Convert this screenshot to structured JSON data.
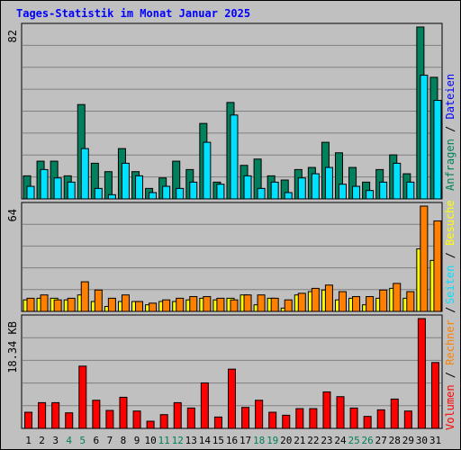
{
  "title": "Tages-Statistik im Monat Januar 2025",
  "colors": {
    "background": "#c0c0c0",
    "plot_background": "#c0c0c0",
    "grid": "#808080",
    "anfragen": "#00805c",
    "dateien": "#00e0ff",
    "seiten": "#00e0ff",
    "besuche": "#ffff00",
    "rechner": "#ff8000",
    "volumen": "#ff0000",
    "title": "#0000ff",
    "weekend": "#00805c",
    "weekday": "#000000"
  },
  "legends": {
    "top": [
      {
        "text": "Anfragen",
        "color": "#00805c"
      },
      {
        "text": " / ",
        "color": "#000000"
      },
      {
        "text": "Dateien",
        "color": "#0000ff"
      }
    ],
    "middle": [
      {
        "text": "Seiten",
        "color": "#00e0ff"
      },
      {
        "text": " / ",
        "color": "#000000"
      },
      {
        "text": "Besuche",
        "color": "#ffff00"
      }
    ],
    "bottom": [
      {
        "text": "Volumen",
        "color": "#ff0000"
      },
      {
        "text": " / ",
        "color": "#000000"
      },
      {
        "text": "Rechner",
        "color": "#ff8000"
      },
      {
        "text": " / ",
        "color": "#000000"
      }
    ]
  },
  "chart_data": [
    {
      "type": "bar",
      "panel": "top",
      "ymax_label": "82",
      "ylim": [
        0,
        82
      ],
      "categories": [
        "1",
        "2",
        "3",
        "4",
        "5",
        "6",
        "7",
        "8",
        "9",
        "10",
        "11",
        "12",
        "13",
        "14",
        "15",
        "16",
        "17",
        "18",
        "19",
        "20",
        "21",
        "22",
        "23",
        "24",
        "25",
        "26",
        "27",
        "28",
        "29",
        "30",
        "31"
      ],
      "weekend_days": [
        "4",
        "5",
        "11",
        "12",
        "18",
        "19",
        "25",
        "26"
      ],
      "series": [
        {
          "name": "Anfragen",
          "color": "#00805c",
          "values": [
            11,
            18,
            18,
            11,
            45,
            17,
            13,
            24,
            13,
            5,
            10,
            18,
            14,
            36,
            8,
            46,
            16,
            19,
            11,
            9,
            14,
            15,
            27,
            22,
            15,
            8,
            14,
            21,
            12,
            82,
            58
          ]
        },
        {
          "name": "Dateien",
          "color": "#00e0ff",
          "values": [
            6,
            14,
            10,
            8,
            24,
            5,
            2,
            17,
            11,
            3,
            6,
            5,
            8,
            27,
            7,
            40,
            11,
            5,
            8,
            3,
            10,
            12,
            15,
            7,
            6,
            4,
            8,
            17,
            8,
            59,
            47
          ]
        }
      ]
    },
    {
      "type": "bar",
      "panel": "middle",
      "ymax_label": "64",
      "ylim": [
        0,
        64
      ],
      "categories": [
        "1",
        "2",
        "3",
        "4",
        "5",
        "6",
        "7",
        "8",
        "9",
        "10",
        "11",
        "12",
        "13",
        "14",
        "15",
        "16",
        "17",
        "18",
        "19",
        "20",
        "21",
        "22",
        "23",
        "24",
        "25",
        "26",
        "27",
        "28",
        "29",
        "30",
        "31"
      ],
      "series": [
        {
          "name": "Besuche",
          "color": "#ffff00",
          "values": [
            7,
            8,
            8,
            7,
            10,
            6,
            3,
            6,
            6,
            4,
            6,
            6,
            7,
            8,
            7,
            8,
            10,
            4,
            8,
            2,
            10,
            12,
            13,
            7,
            8,
            4,
            8,
            14,
            8,
            38,
            31
          ]
        },
        {
          "name": "Rechner",
          "color": "#ff8000",
          "values": [
            8,
            10,
            7,
            8,
            18,
            13,
            8,
            10,
            6,
            5,
            7,
            8,
            9,
            9,
            8,
            7,
            10,
            10,
            8,
            7,
            11,
            14,
            16,
            12,
            9,
            9,
            13,
            17,
            12,
            64,
            55
          ]
        }
      ]
    },
    {
      "type": "bar",
      "panel": "bottom",
      "ymax_label": "18.34 KB",
      "ylim": [
        0,
        18.34
      ],
      "categories": [
        "1",
        "2",
        "3",
        "4",
        "5",
        "6",
        "7",
        "8",
        "9",
        "10",
        "11",
        "12",
        "13",
        "14",
        "15",
        "16",
        "17",
        "18",
        "19",
        "20",
        "21",
        "22",
        "23",
        "24",
        "25",
        "26",
        "27",
        "28",
        "29",
        "30",
        "31"
      ],
      "series": [
        {
          "name": "Volumen",
          "color": "#ff0000",
          "values": [
            2.7,
            4.3,
            4.3,
            2.6,
            10.4,
            4.7,
            3.0,
            5.2,
            2.9,
            1.2,
            2.3,
            4.3,
            3.4,
            7.6,
            1.9,
            9.9,
            3.5,
            4.7,
            2.7,
            2.2,
            3.3,
            3.3,
            6.1,
            5.3,
            3.4,
            2.0,
            3.1,
            4.9,
            2.9,
            18.34,
            11.0
          ]
        }
      ]
    }
  ]
}
